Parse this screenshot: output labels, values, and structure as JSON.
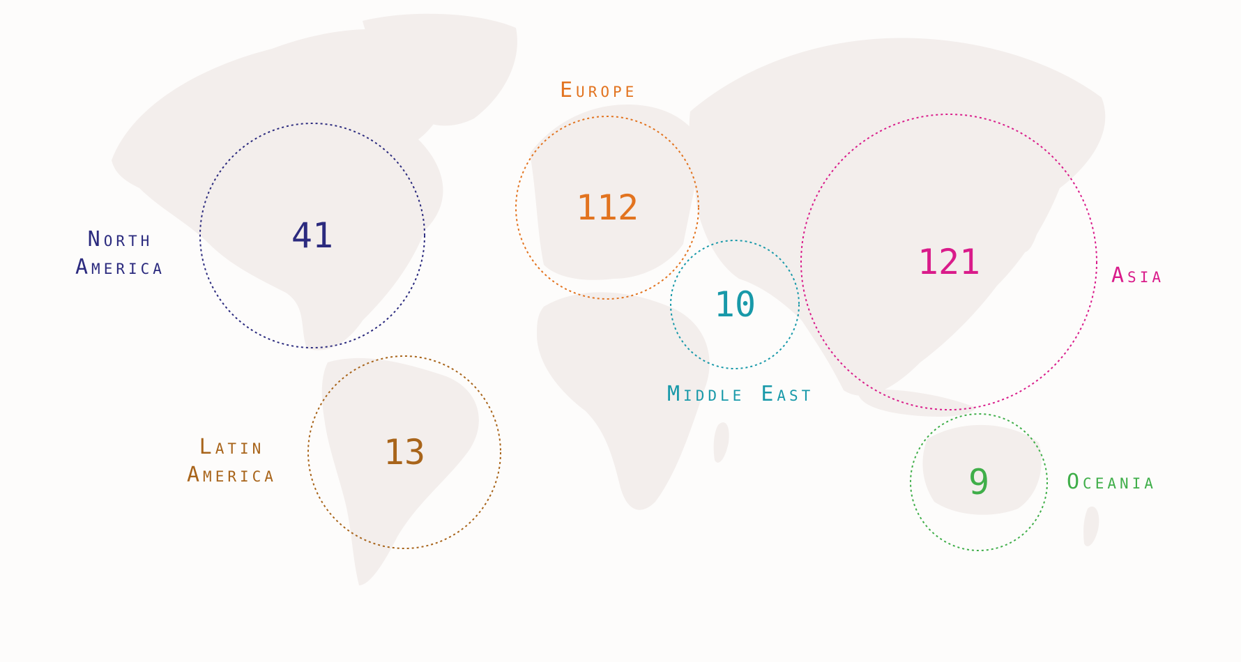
{
  "regions": [
    {
      "key": "north_america",
      "label_lines": [
        "North",
        "America"
      ],
      "count": "41",
      "color": "#2b2a7e"
    },
    {
      "key": "europe",
      "label_lines": [
        "Europe"
      ],
      "count": "112",
      "color": "#e2731f"
    },
    {
      "key": "middle_east",
      "label_lines": [
        "Middle East"
      ],
      "count": "10",
      "color": "#1899a9"
    },
    {
      "key": "asia",
      "label_lines": [
        "Asia"
      ],
      "count": "121",
      "color": "#d91b8a"
    },
    {
      "key": "latin_america",
      "label_lines": [
        "Latin",
        "America"
      ],
      "count": "13",
      "color": "#a8641a"
    },
    {
      "key": "oceania",
      "label_lines": [
        "Oceania"
      ],
      "count": "9",
      "color": "#3fae49"
    }
  ]
}
